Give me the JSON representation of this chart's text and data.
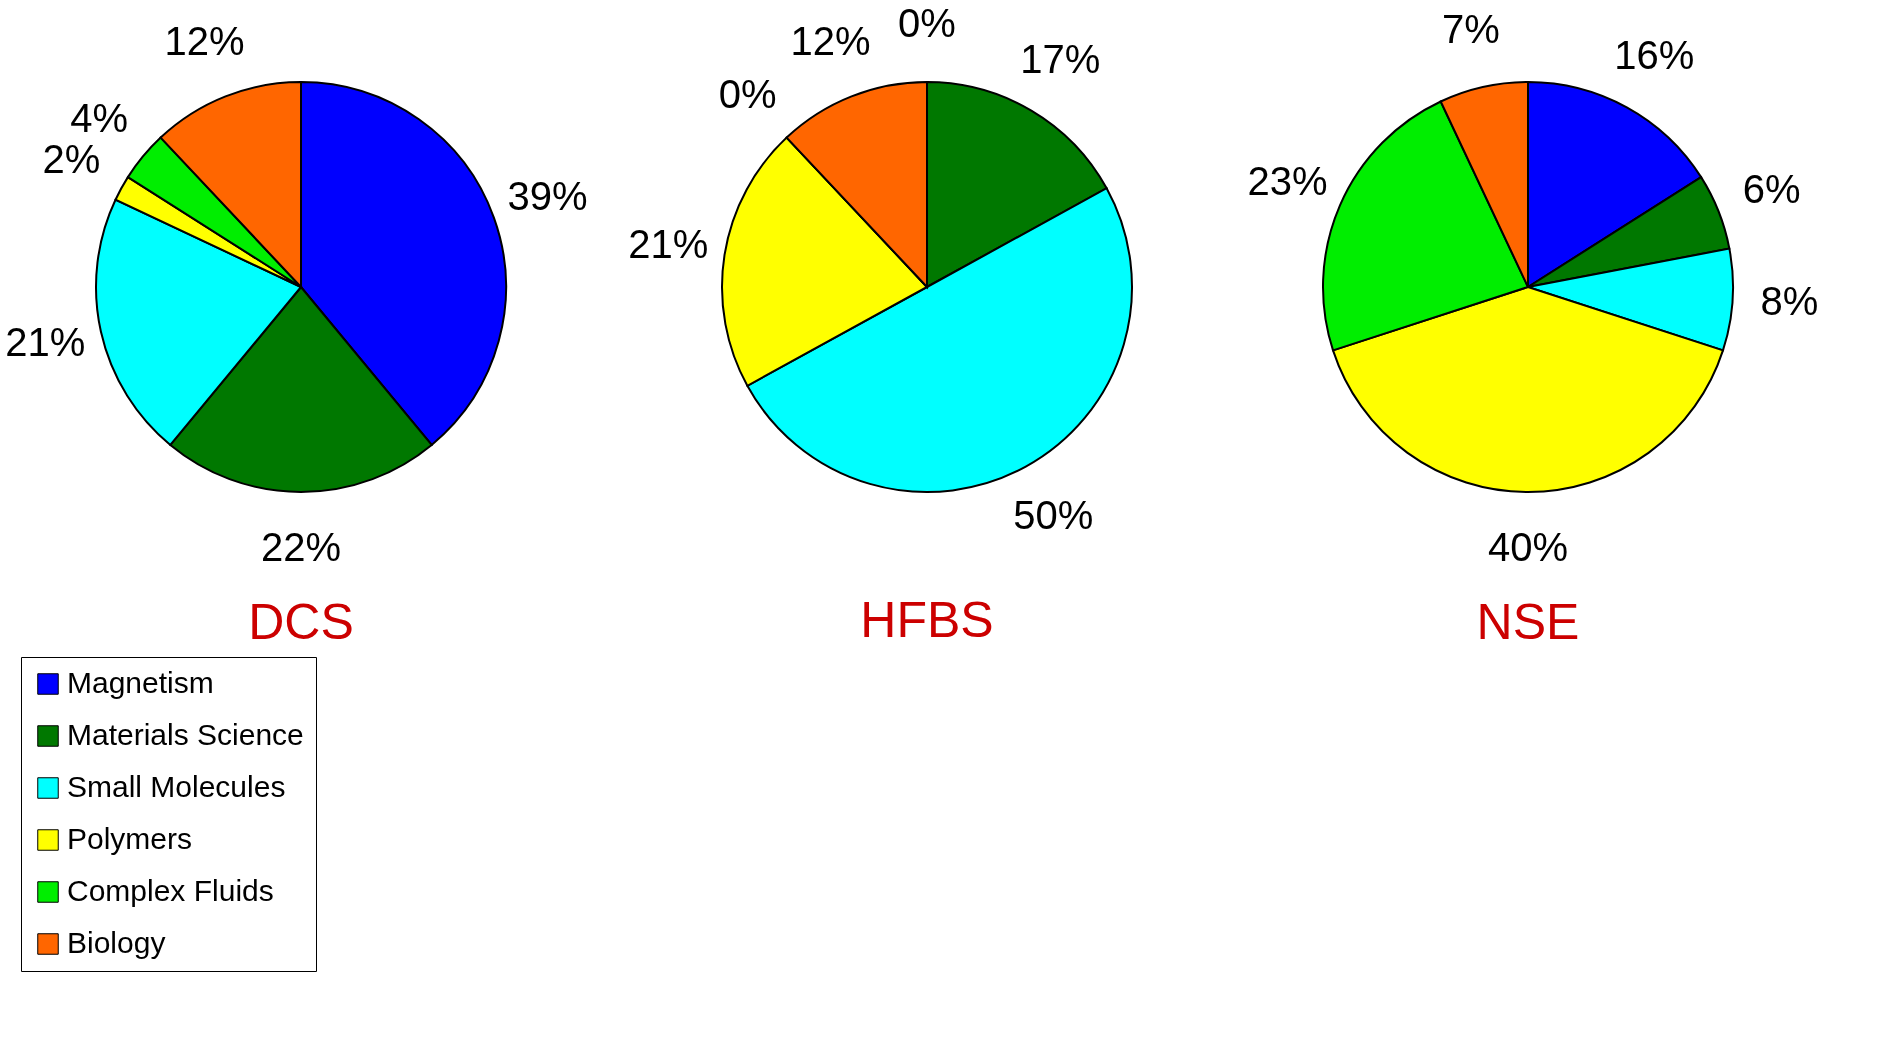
{
  "chart_data": [
    {
      "type": "pie",
      "title": "DCS",
      "legend": "bottom left",
      "categories": [
        "Magnetism",
        "Materials Science",
        "Small Molecules",
        "Polymers",
        "Complex Fluids",
        "Biology"
      ],
      "values": [
        39,
        22,
        21,
        2,
        4,
        12
      ],
      "value_labels": [
        "39%",
        "22%",
        "21%",
        "2%",
        "4%",
        "12%"
      ],
      "colors": [
        "#0000ff",
        "#007800",
        "#00ffff",
        "#ffff00",
        "#00ee00",
        "#ff6600"
      ]
    },
    {
      "type": "pie",
      "title": "HFBS",
      "values": [
        0,
        17,
        50,
        21,
        0,
        12
      ],
      "value_labels": [
        "0%",
        "17%",
        "50%",
        "21%",
        "0%",
        "12%"
      ],
      "colors": [
        "#0000ff",
        "#007800",
        "#00ffff",
        "#ffff00",
        "#00ee00",
        "#ff6600"
      ]
    },
    {
      "type": "pie",
      "title": "NSE",
      "values": [
        16,
        6,
        8,
        40,
        23,
        7
      ],
      "value_labels": [
        "16%",
        "6%",
        "8%",
        "40%",
        "23%",
        "7%"
      ],
      "colors": [
        "#0000ff",
        "#007800",
        "#00ffff",
        "#ffff00",
        "#00ee00",
        "#ff6600"
      ]
    }
  ]
}
